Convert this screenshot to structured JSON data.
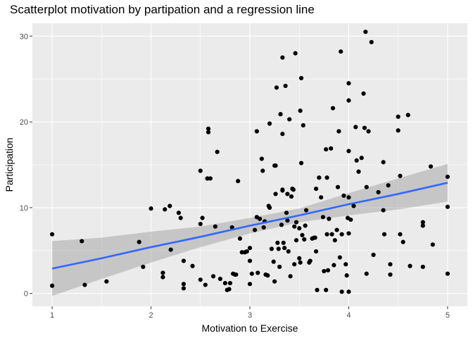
{
  "chart_data": {
    "type": "scatter",
    "title": "Scatterplot motivation by partipation and a regression line",
    "xlabel": "Motivation to Exercise",
    "ylabel": "Participation",
    "xlim": [
      0.8,
      5.2
    ],
    "ylim": [
      -1.5,
      31.5
    ],
    "x_ticks": [
      1,
      2,
      3,
      4,
      5
    ],
    "y_ticks": [
      0,
      10,
      20,
      30
    ],
    "x_tick_labels": [
      "1",
      "2",
      "3",
      "4",
      "5"
    ],
    "y_tick_labels": [
      "0",
      "10",
      "20",
      "30"
    ],
    "grid": true,
    "colors": {
      "panel": "#ebebeb",
      "grid": "#ffffff",
      "points": "#000000",
      "line": "#3366ff",
      "band": "#999999"
    },
    "points": [
      [
        1.0,
        6.9
      ],
      [
        1.0,
        0.9
      ],
      [
        1.3,
        6.1
      ],
      [
        1.33,
        1.0
      ],
      [
        1.55,
        1.4
      ],
      [
        1.88,
        6.0
      ],
      [
        1.92,
        3.1
      ],
      [
        2.0,
        9.9
      ],
      [
        2.12,
        1.9
      ],
      [
        2.12,
        2.4
      ],
      [
        2.14,
        9.8
      ],
      [
        2.19,
        10.2
      ],
      [
        2.2,
        5.1
      ],
      [
        2.28,
        9.4
      ],
      [
        2.3,
        8.8
      ],
      [
        2.33,
        3.8
      ],
      [
        2.33,
        1.1
      ],
      [
        2.33,
        0.6
      ],
      [
        2.42,
        3.2
      ],
      [
        2.5,
        14.3
      ],
      [
        2.5,
        8.1
      ],
      [
        2.5,
        1.6
      ],
      [
        2.52,
        8.8
      ],
      [
        2.55,
        1.0
      ],
      [
        2.57,
        13.4
      ],
      [
        2.58,
        19.2
      ],
      [
        2.58,
        18.8
      ],
      [
        2.6,
        13.4
      ],
      [
        2.63,
        2.0
      ],
      [
        2.65,
        7.8
      ],
      [
        2.67,
        16.5
      ],
      [
        2.7,
        1.7
      ],
      [
        2.75,
        1.2
      ],
      [
        2.77,
        0.4
      ],
      [
        2.79,
        0.5
      ],
      [
        2.8,
        1.2
      ],
      [
        2.82,
        7.7
      ],
      [
        2.83,
        2.3
      ],
      [
        2.85,
        2.2
      ],
      [
        2.86,
        2.2
      ],
      [
        2.88,
        13.1
      ],
      [
        2.9,
        6.4
      ],
      [
        2.92,
        4.8
      ],
      [
        2.95,
        4.8
      ],
      [
        2.97,
        4.9
      ],
      [
        3.0,
        5.3
      ],
      [
        3.0,
        3.8
      ],
      [
        3.0,
        1.1
      ],
      [
        3.02,
        2.3
      ],
      [
        3.05,
        7.4
      ],
      [
        3.07,
        8.9
      ],
      [
        3.07,
        18.9
      ],
      [
        3.08,
        2.4
      ],
      [
        3.1,
        8.7
      ],
      [
        3.12,
        15.7
      ],
      [
        3.13,
        14.3
      ],
      [
        3.14,
        7.7
      ],
      [
        3.15,
        8.4
      ],
      [
        3.16,
        2.2
      ],
      [
        3.18,
        2.1
      ],
      [
        3.19,
        10.2
      ],
      [
        3.2,
        10.0
      ],
      [
        3.2,
        19.8
      ],
      [
        3.22,
        5.2
      ],
      [
        3.24,
        3.7
      ],
      [
        3.25,
        1.4
      ],
      [
        3.25,
        14.9
      ],
      [
        3.26,
        11.6
      ],
      [
        3.26,
        14.9
      ],
      [
        3.27,
        24.0
      ],
      [
        3.28,
        5.9
      ],
      [
        3.29,
        5.2
      ],
      [
        3.3,
        3.1
      ],
      [
        3.31,
        20.9
      ],
      [
        3.32,
        8.0
      ],
      [
        3.33,
        12.1
      ],
      [
        3.33,
        12.0
      ],
      [
        3.33,
        18.6
      ],
      [
        3.33,
        27.5
      ],
      [
        3.34,
        5.9
      ],
      [
        3.35,
        5.3
      ],
      [
        3.36,
        24.2
      ],
      [
        3.37,
        9.4
      ],
      [
        3.38,
        11.6
      ],
      [
        3.38,
        8.5
      ],
      [
        3.39,
        4.9
      ],
      [
        3.4,
        20.3
      ],
      [
        3.41,
        2.0
      ],
      [
        3.42,
        11.3
      ],
      [
        3.43,
        12.2
      ],
      [
        3.44,
        12.1
      ],
      [
        3.45,
        7.8
      ],
      [
        3.45,
        3.4
      ],
      [
        3.46,
        28.0
      ],
      [
        3.47,
        6.2
      ],
      [
        3.47,
        8.3
      ],
      [
        3.5,
        7.6
      ],
      [
        3.5,
        4.1
      ],
      [
        3.51,
        3.6
      ],
      [
        3.51,
        21.3
      ],
      [
        3.52,
        15.2
      ],
      [
        3.52,
        25.1
      ],
      [
        3.53,
        6.8
      ],
      [
        3.54,
        19.6
      ],
      [
        3.55,
        6.3
      ],
      [
        3.56,
        7.9
      ],
      [
        3.57,
        9.7
      ],
      [
        3.6,
        3.6
      ],
      [
        3.61,
        3.8
      ],
      [
        3.63,
        6.4
      ],
      [
        3.65,
        6.5
      ],
      [
        3.66,
        6.5
      ],
      [
        3.67,
        12.2
      ],
      [
        3.67,
        4.9
      ],
      [
        3.68,
        0.4
      ],
      [
        3.7,
        13.5
      ],
      [
        3.72,
        11.2
      ],
      [
        3.74,
        8.9
      ],
      [
        3.75,
        2.6
      ],
      [
        3.77,
        0.4
      ],
      [
        3.77,
        16.8
      ],
      [
        3.78,
        13.5
      ],
      [
        3.78,
        6.9
      ],
      [
        3.79,
        2.7
      ],
      [
        3.8,
        8.7
      ],
      [
        3.82,
        16.9
      ],
      [
        3.83,
        6.9
      ],
      [
        3.84,
        21.6
      ],
      [
        3.85,
        3.3
      ],
      [
        3.86,
        6.2
      ],
      [
        3.88,
        7.4
      ],
      [
        3.89,
        12.4
      ],
      [
        3.9,
        18.9
      ],
      [
        3.91,
        4.2
      ],
      [
        3.92,
        28.2
      ],
      [
        3.93,
        6.9
      ],
      [
        3.93,
        0.2
      ],
      [
        3.95,
        11.4
      ],
      [
        3.97,
        3.4
      ],
      [
        3.98,
        2.1
      ],
      [
        3.99,
        8.8
      ],
      [
        4.0,
        24.5
      ],
      [
        4.0,
        22.5
      ],
      [
        4.0,
        16.6
      ],
      [
        4.0,
        11.2
      ],
      [
        4.0,
        7.0
      ],
      [
        4.0,
        0.2
      ],
      [
        4.02,
        8.6
      ],
      [
        4.05,
        10.2
      ],
      [
        4.07,
        19.4
      ],
      [
        4.08,
        15.5
      ],
      [
        4.1,
        14.2
      ],
      [
        4.13,
        15.8
      ],
      [
        4.15,
        23.3
      ],
      [
        4.16,
        19.3
      ],
      [
        4.17,
        30.5
      ],
      [
        4.18,
        12.4
      ],
      [
        4.18,
        2.3
      ],
      [
        4.2,
        18.9
      ],
      [
        4.23,
        29.3
      ],
      [
        4.25,
        4.5
      ],
      [
        4.3,
        11.8
      ],
      [
        4.35,
        15.3
      ],
      [
        4.35,
        9.7
      ],
      [
        4.36,
        6.9
      ],
      [
        4.4,
        12.6
      ],
      [
        4.42,
        3.4
      ],
      [
        4.42,
        2.2
      ],
      [
        4.5,
        20.6
      ],
      [
        4.5,
        19.0
      ],
      [
        4.52,
        13.7
      ],
      [
        4.52,
        6.9
      ],
      [
        4.55,
        6.0
      ],
      [
        4.6,
        20.8
      ],
      [
        4.62,
        3.2
      ],
      [
        4.75,
        8.3
      ],
      [
        4.75,
        7.9
      ],
      [
        4.75,
        3.1
      ],
      [
        4.83,
        14.8
      ],
      [
        4.85,
        5.7
      ],
      [
        5.0,
        13.6
      ],
      [
        5.0,
        10.1
      ],
      [
        5.0,
        2.3
      ]
    ],
    "regression": {
      "x": [
        1.0,
        1.5,
        2.0,
        2.5,
        3.0,
        3.5,
        4.0,
        4.5,
        5.0
      ],
      "fit": [
        2.9,
        4.1,
        5.4,
        6.6,
        7.9,
        9.1,
        10.4,
        11.6,
        12.9
      ],
      "lower": [
        -0.3,
        1.7,
        3.6,
        5.4,
        7.0,
        8.3,
        9.1,
        9.8,
        10.7
      ],
      "upper": [
        6.1,
        6.5,
        7.2,
        7.8,
        8.8,
        9.9,
        11.7,
        13.4,
        15.1
      ]
    }
  }
}
